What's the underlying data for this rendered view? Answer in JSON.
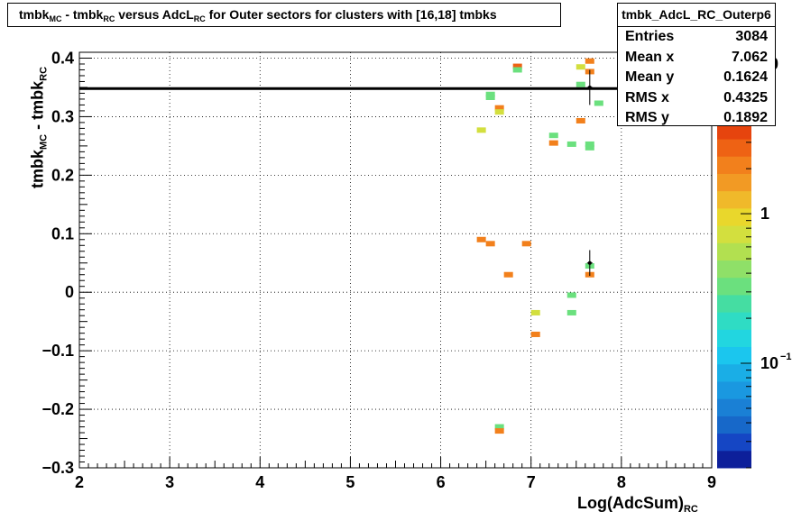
{
  "title": {
    "parts": [
      "tmbk",
      "MC",
      " - tmbk",
      "RC",
      " versus AdcL",
      "RC",
      " for Outer sectors for clusters with [16,18] tmbks"
    ]
  },
  "stats": {
    "name": "tmbk_AdcL_RC_Outerp6",
    "rows": [
      {
        "label": "Entries",
        "value": "3084"
      },
      {
        "label": "Mean x",
        "value": "7.062"
      },
      {
        "label": "Mean y",
        "value": "0.1624"
      },
      {
        "label": "RMS x",
        "value": "0.4325"
      },
      {
        "label": "RMS y",
        "value": "0.1892"
      }
    ]
  },
  "axes": {
    "x_label_main": "Log(AdcSum)",
    "x_label_sub": "RC",
    "y_label_parts": [
      "tmbk",
      "MC",
      " - tmbk",
      "RC"
    ]
  },
  "chart_data": {
    "type": "heatmap",
    "xlim": [
      2,
      9
    ],
    "ylim": [
      -0.3,
      0.41
    ],
    "x_ticks": [
      "2",
      "3",
      "4",
      "5",
      "6",
      "7",
      "8",
      "9"
    ],
    "y_ticks": [
      "−0.3",
      "−0.2",
      "−0.1",
      "0",
      "0.1",
      "0.2",
      "0.3",
      "0.4"
    ],
    "y_tick_values": [
      -0.3,
      -0.2,
      -0.1,
      0,
      0.1,
      0.2,
      0.3,
      0.4
    ],
    "grid": true,
    "z_scale": "log",
    "z_range": [
      0.02,
      12
    ],
    "z_ticks": [
      {
        "label": "10",
        "exp": "−1",
        "value": 0.1
      },
      {
        "label": "1",
        "exp": "",
        "value": 1
      },
      {
        "label": "10",
        "exp": "",
        "value": 10
      }
    ],
    "palette": [
      "#0d1f9a",
      "#1546c4",
      "#1768c9",
      "#1a80d5",
      "#1a98e0",
      "#1aaee6",
      "#1bc6ee",
      "#22d6e0",
      "#2fdcc4",
      "#45dda2",
      "#6be07e",
      "#8fe068",
      "#b2e050",
      "#d3df3e",
      "#e9d72c",
      "#f0b92a",
      "#f29a24",
      "#f2801c",
      "#ee6214",
      "#e6440e",
      "#d42a0a",
      "#b41a08",
      "#8e1006",
      "#7a0f0f"
    ],
    "cells": [
      {
        "x": 7.65,
        "y": 0.395,
        "z": 2
      },
      {
        "x": 7.55,
        "y": 0.385,
        "z": 0.7
      },
      {
        "x": 7.65,
        "y": 0.377,
        "z": 2
      },
      {
        "x": 6.85,
        "y": 0.386,
        "z": 2.5
      },
      {
        "x": 6.85,
        "y": 0.38,
        "z": 0.35
      },
      {
        "x": 7.55,
        "y": 0.355,
        "z": 0.3
      },
      {
        "x": 6.55,
        "y": 0.338,
        "z": 0.3
      },
      {
        "x": 6.55,
        "y": 0.333,
        "z": 0.3
      },
      {
        "x": 7.75,
        "y": 0.323,
        "z": 0.3
      },
      {
        "x": 6.65,
        "y": 0.315,
        "z": 2
      },
      {
        "x": 6.65,
        "y": 0.308,
        "z": 0.7
      },
      {
        "x": 7.55,
        "y": 0.293,
        "z": 2
      },
      {
        "x": 6.45,
        "y": 0.277,
        "z": 0.7
      },
      {
        "x": 7.25,
        "y": 0.268,
        "z": 0.35
      },
      {
        "x": 7.25,
        "y": 0.255,
        "z": 2
      },
      {
        "x": 7.45,
        "y": 0.253,
        "z": 0.35
      },
      {
        "x": 7.65,
        "y": 0.253,
        "z": 0.35
      },
      {
        "x": 7.65,
        "y": 0.247,
        "z": 0.35
      },
      {
        "x": 6.45,
        "y": 0.09,
        "z": 2
      },
      {
        "x": 6.55,
        "y": 0.083,
        "z": 2
      },
      {
        "x": 6.95,
        "y": 0.083,
        "z": 2
      },
      {
        "x": 6.75,
        "y": 0.03,
        "z": 2
      },
      {
        "x": 7.65,
        "y": 0.045,
        "z": 0.3
      },
      {
        "x": 7.65,
        "y": 0.03,
        "z": 2
      },
      {
        "x": 7.45,
        "y": -0.005,
        "z": 0.3
      },
      {
        "x": 7.05,
        "y": -0.035,
        "z": 0.7
      },
      {
        "x": 7.45,
        "y": -0.035,
        "z": 0.35
      },
      {
        "x": 7.05,
        "y": -0.072,
        "z": 2
      },
      {
        "x": 6.65,
        "y": -0.23,
        "z": 0.35
      },
      {
        "x": 6.65,
        "y": -0.237,
        "z": 2
      }
    ],
    "profile_line": {
      "y": 0.348
    },
    "profile_points": [
      {
        "x": 7.65,
        "y": 0.35,
        "err": 0.03
      },
      {
        "x": 7.65,
        "y": 0.05,
        "err": 0.022
      }
    ]
  }
}
